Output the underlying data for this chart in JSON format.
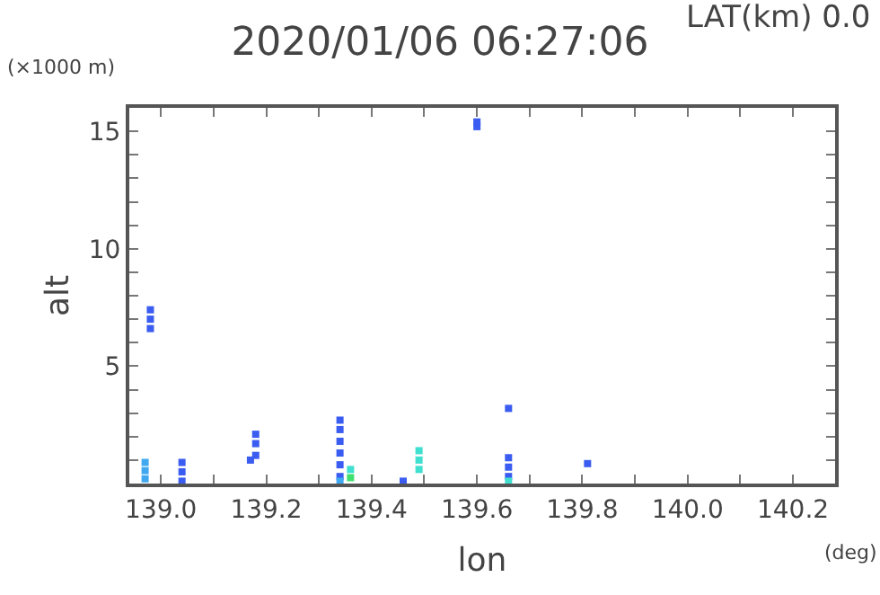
{
  "chart_data": {
    "type": "scatter",
    "title": "2020/01/06 06:27:06",
    "subtitle": "LAT(km) 0.0",
    "xlabel": "lon",
    "ylabel": "alt",
    "annotations": [
      "(×1000 m)",
      "(deg)"
    ],
    "marker": "square",
    "xlim": [
      138.94,
      140.28
    ],
    "xticks": [
      {
        "value": 139.0,
        "label": "139.0"
      },
      {
        "value": 139.1,
        "label": null
      },
      {
        "value": 139.2,
        "label": "139.2"
      },
      {
        "value": 139.3,
        "label": null
      },
      {
        "value": 139.4,
        "label": "139.4"
      },
      {
        "value": 139.5,
        "label": null
      },
      {
        "value": 139.6,
        "label": "139.6"
      },
      {
        "value": 139.7,
        "label": null
      },
      {
        "value": 139.8,
        "label": "139.8"
      },
      {
        "value": 139.9,
        "label": null
      },
      {
        "value": 140.0,
        "label": "140.0"
      },
      {
        "value": 140.1,
        "label": null
      },
      {
        "value": 140.2,
        "label": "140.2"
      }
    ],
    "ylim": [
      0,
      16
    ],
    "yticks": [
      {
        "value": 1,
        "label": null
      },
      {
        "value": 2,
        "label": null
      },
      {
        "value": 3,
        "label": null
      },
      {
        "value": 4,
        "label": null
      },
      5,
      {
        "value": 6,
        "label": null
      },
      {
        "value": 7,
        "label": null
      },
      {
        "value": 8,
        "label": null
      },
      {
        "value": 9,
        "label": null
      },
      10,
      {
        "value": 11,
        "label": null
      },
      {
        "value": 12,
        "label": null
      },
      {
        "value": 13,
        "label": null
      },
      {
        "value": 14,
        "label": null
      },
      15
    ],
    "series": [
      {
        "color": "#3a5cf0",
        "x": [
          138.98,
          138.98,
          138.98,
          139.04,
          139.04,
          139.04,
          139.18,
          139.18,
          139.18,
          139.17,
          139.34,
          139.34,
          139.34,
          139.34,
          139.34,
          139.34,
          139.46,
          139.6,
          139.6,
          139.66,
          139.66,
          139.66,
          139.66,
          139.81
        ],
        "values": [
          6.6,
          7.0,
          7.4,
          0.1,
          0.5,
          0.9,
          1.2,
          1.7,
          2.1,
          1.0,
          0.3,
          0.8,
          1.3,
          1.8,
          2.3,
          2.7,
          0.1,
          15.2,
          15.4,
          0.3,
          0.7,
          1.1,
          3.2,
          0.85
        ]
      },
      {
        "color": "#40a8f0",
        "x": [
          138.97,
          138.97,
          138.97,
          139.34
        ],
        "values": [
          0.2,
          0.55,
          0.9,
          0.1
        ]
      },
      {
        "color": "#40e0d0",
        "x": [
          139.49,
          139.49,
          139.49,
          139.36,
          139.66
        ],
        "values": [
          0.6,
          1.0,
          1.4,
          0.6,
          0.1
        ]
      },
      {
        "color": "#40e070",
        "x": [
          139.36
        ],
        "values": [
          0.25
        ]
      }
    ]
  }
}
